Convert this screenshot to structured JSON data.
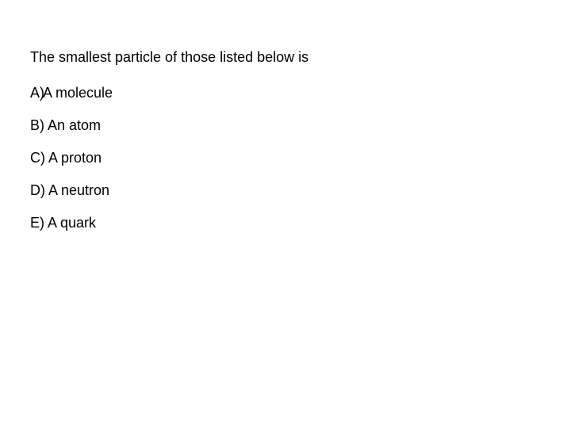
{
  "question": {
    "text": "The smallest particle of those listed below is",
    "fontsize": 18,
    "color": "#000000"
  },
  "options": [
    {
      "label": "A)",
      "text": "A molecule"
    },
    {
      "label": "B)",
      "text": " An atom"
    },
    {
      "label": "C)",
      "text": " A proton"
    },
    {
      "label": "D)",
      "text": " A neutron"
    },
    {
      "label": "E)",
      "text": " A quark"
    }
  ],
  "background_color": "#ffffff",
  "font_family": "Arial"
}
